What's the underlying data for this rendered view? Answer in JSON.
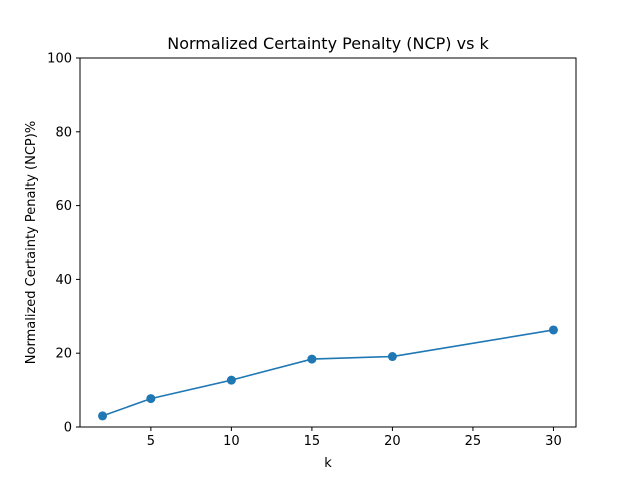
{
  "chart_data": {
    "type": "line",
    "title": "Normalized Certainty Penalty (NCP) vs k",
    "xlabel": "k",
    "ylabel": "Normalized Certainty Penalty (NCP)%",
    "xlim": [
      0.6,
      31.4
    ],
    "ylim": [
      0,
      100
    ],
    "xticks": [
      5,
      10,
      15,
      20,
      25,
      30
    ],
    "yticks": [
      0,
      20,
      40,
      60,
      80,
      100
    ],
    "grid": false,
    "color": "#1f77b4",
    "series": [
      {
        "x": [
          2,
          5,
          10,
          15,
          20,
          30
        ],
        "values": [
          3.0,
          7.7,
          12.7,
          18.4,
          19.1,
          26.3
        ]
      }
    ]
  }
}
